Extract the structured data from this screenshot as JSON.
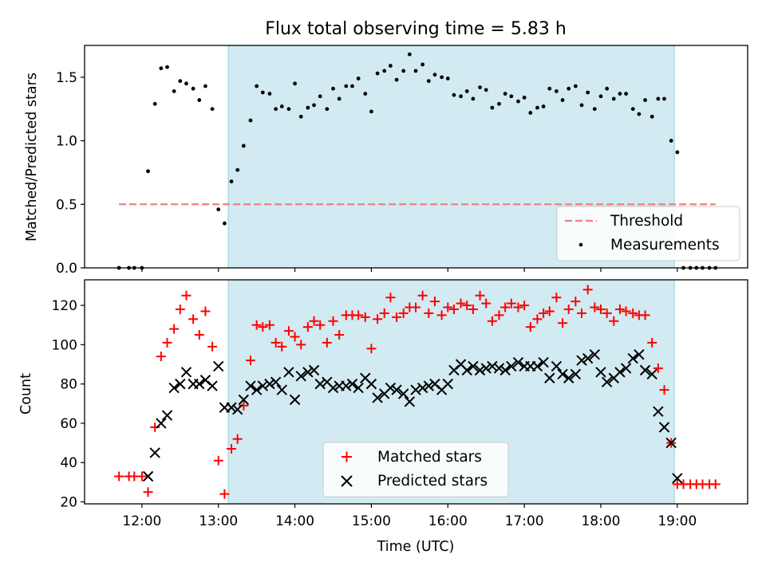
{
  "title": "Flux total observing time = 5.83 h",
  "colors": {
    "shade": "#add8e6",
    "threshold": "#f08080",
    "matched": "#ff0000",
    "predicted": "#000000",
    "measurement": "#000000"
  },
  "chart_data": [
    {
      "type": "scatter",
      "ylabel": "Matched/Predicted stars",
      "ylim": [
        0,
        1.75
      ],
      "yticks": [
        0.0,
        0.5,
        1.0,
        1.5
      ],
      "ytick_labels": [
        "0.0",
        "0.5",
        "1.0",
        "1.5"
      ],
      "xlim": [
        11.25,
        19.92
      ],
      "grid": false,
      "legend_position": "lower-right",
      "observing_window": {
        "start": 13.13,
        "end": 18.96
      },
      "threshold": {
        "name": "Threshold",
        "y": 0.5,
        "x_range": [
          11.7,
          19.5
        ]
      },
      "series": [
        {
          "name": "Measurements",
          "x": [
            11.7,
            11.83,
            11.9,
            12.0,
            12.08,
            12.17,
            12.25,
            12.33,
            12.42,
            12.5,
            12.58,
            12.67,
            12.75,
            12.83,
            12.92,
            13.0,
            13.08,
            13.17,
            13.25,
            13.33,
            13.42,
            13.5,
            13.58,
            13.67,
            13.75,
            13.83,
            13.92,
            14.0,
            14.08,
            14.17,
            14.25,
            14.33,
            14.42,
            14.5,
            14.58,
            14.67,
            14.75,
            14.83,
            14.92,
            15.0,
            15.08,
            15.17,
            15.25,
            15.33,
            15.42,
            15.5,
            15.58,
            15.67,
            15.75,
            15.83,
            15.92,
            16.0,
            16.08,
            16.17,
            16.25,
            16.33,
            16.42,
            16.5,
            16.58,
            16.67,
            16.75,
            16.83,
            16.92,
            17.0,
            17.08,
            17.17,
            17.25,
            17.33,
            17.42,
            17.5,
            17.58,
            17.67,
            17.75,
            17.83,
            17.92,
            18.0,
            18.08,
            18.17,
            18.25,
            18.33,
            18.42,
            18.5,
            18.58,
            18.67,
            18.75,
            18.83,
            18.92,
            19.0,
            19.08,
            19.17,
            19.25,
            19.33,
            19.42,
            19.5
          ],
          "y": [
            0.0,
            0.0,
            0.0,
            0.0,
            0.76,
            1.29,
            1.57,
            1.58,
            1.39,
            1.47,
            1.45,
            1.41,
            1.32,
            1.43,
            1.25,
            0.46,
            0.35,
            0.68,
            0.77,
            0.96,
            1.16,
            1.43,
            1.38,
            1.37,
            1.25,
            1.27,
            1.25,
            1.45,
            1.19,
            1.26,
            1.28,
            1.35,
            1.25,
            1.41,
            1.33,
            1.43,
            1.43,
            1.49,
            1.37,
            1.23,
            1.53,
            1.55,
            1.59,
            1.48,
            1.55,
            1.68,
            1.55,
            1.6,
            1.47,
            1.52,
            1.5,
            1.49,
            1.36,
            1.35,
            1.39,
            1.33,
            1.42,
            1.4,
            1.26,
            1.29,
            1.37,
            1.35,
            1.31,
            1.34,
            1.22,
            1.26,
            1.27,
            1.41,
            1.39,
            1.32,
            1.41,
            1.43,
            1.28,
            1.38,
            1.25,
            1.35,
            1.41,
            1.33,
            1.37,
            1.37,
            1.25,
            1.21,
            1.32,
            1.19,
            1.33,
            1.33,
            1.0,
            0.91,
            0.0,
            0.0,
            0.0,
            0.0,
            0.0,
            0.0
          ]
        }
      ]
    },
    {
      "type": "scatter",
      "ylabel": "Count",
      "xlabel": "Time (UTC)",
      "ylim": [
        19,
        133
      ],
      "yticks": [
        20,
        40,
        60,
        80,
        100,
        120
      ],
      "ytick_labels": [
        "20",
        "40",
        "60",
        "80",
        "100",
        "120"
      ],
      "xlim": [
        11.25,
        19.92
      ],
      "xticks": [
        12,
        13,
        14,
        15,
        16,
        17,
        18,
        19
      ],
      "xtick_labels": [
        "12:00",
        "13:00",
        "14:00",
        "15:00",
        "16:00",
        "17:00",
        "18:00",
        "19:00"
      ],
      "grid": false,
      "legend_position": "lower-center",
      "observing_window": {
        "start": 13.13,
        "end": 18.96
      },
      "series": [
        {
          "name": "Matched stars",
          "marker": "plus",
          "x": [
            11.7,
            11.83,
            11.9,
            12.0,
            12.08,
            12.17,
            12.25,
            12.33,
            12.42,
            12.5,
            12.58,
            12.67,
            12.75,
            12.83,
            12.92,
            13.0,
            13.08,
            13.17,
            13.25,
            13.33,
            13.42,
            13.5,
            13.58,
            13.67,
            13.75,
            13.83,
            13.92,
            14.0,
            14.08,
            14.17,
            14.25,
            14.33,
            14.42,
            14.5,
            14.58,
            14.67,
            14.75,
            14.83,
            14.92,
            15.0,
            15.08,
            15.17,
            15.25,
            15.33,
            15.42,
            15.5,
            15.58,
            15.67,
            15.75,
            15.83,
            15.92,
            16.0,
            16.08,
            16.17,
            16.25,
            16.33,
            16.42,
            16.5,
            16.58,
            16.67,
            16.75,
            16.83,
            16.92,
            17.0,
            17.08,
            17.17,
            17.25,
            17.33,
            17.42,
            17.5,
            17.58,
            17.67,
            17.75,
            17.83,
            17.92,
            18.0,
            18.08,
            18.17,
            18.25,
            18.33,
            18.42,
            18.5,
            18.58,
            18.67,
            18.75,
            18.83,
            18.92,
            19.0,
            19.08,
            19.17,
            19.25,
            19.33,
            19.42,
            19.5
          ],
          "y": [
            33,
            33,
            33,
            33,
            25,
            58,
            94,
            101,
            108,
            118,
            125,
            113,
            105,
            117,
            99,
            41,
            24,
            47,
            52,
            69,
            92,
            110,
            109,
            110,
            101,
            99,
            107,
            104,
            100,
            109,
            112,
            110,
            101,
            112,
            105,
            115,
            115,
            115,
            114,
            98,
            113,
            116,
            124,
            114,
            116,
            119,
            119,
            125,
            116,
            122,
            115,
            119,
            118,
            121,
            120,
            118,
            125,
            121,
            112,
            115,
            119,
            121,
            119,
            120,
            109,
            113,
            116,
            117,
            124,
            111,
            118,
            122,
            116,
            128,
            119,
            118,
            116,
            112,
            118,
            117,
            116,
            115,
            115,
            101,
            88,
            77,
            50,
            29,
            29,
            29,
            29,
            29,
            29,
            29
          ]
        },
        {
          "name": "Predicted stars",
          "marker": "x",
          "x": [
            12.08,
            12.17,
            12.25,
            12.33,
            12.42,
            12.5,
            12.58,
            12.67,
            12.75,
            12.83,
            12.92,
            13.0,
            13.08,
            13.17,
            13.25,
            13.33,
            13.42,
            13.5,
            13.58,
            13.67,
            13.75,
            13.83,
            13.92,
            14.0,
            14.08,
            14.17,
            14.25,
            14.33,
            14.42,
            14.5,
            14.58,
            14.67,
            14.75,
            14.83,
            14.92,
            15.0,
            15.08,
            15.17,
            15.25,
            15.33,
            15.42,
            15.5,
            15.58,
            15.67,
            15.75,
            15.83,
            15.92,
            16.0,
            16.08,
            16.17,
            16.25,
            16.33,
            16.42,
            16.5,
            16.58,
            16.67,
            16.75,
            16.83,
            16.92,
            17.0,
            17.08,
            17.17,
            17.25,
            17.33,
            17.42,
            17.5,
            17.58,
            17.67,
            17.75,
            17.83,
            17.92,
            18.0,
            18.08,
            18.17,
            18.25,
            18.33,
            18.42,
            18.5,
            18.58,
            18.67,
            18.75,
            18.83,
            18.92,
            19.0
          ],
          "y": [
            33,
            45,
            60,
            64,
            78,
            80,
            86,
            80,
            80,
            82,
            79,
            89,
            68,
            68,
            67,
            72,
            79,
            77,
            79,
            80,
            81,
            77,
            86,
            72,
            84,
            86,
            87,
            80,
            81,
            78,
            79,
            79,
            80,
            78,
            83,
            80,
            73,
            75,
            78,
            77,
            75,
            71,
            77,
            78,
            79,
            80,
            77,
            80,
            87,
            90,
            87,
            89,
            87,
            88,
            89,
            88,
            87,
            89,
            91,
            89,
            89,
            89,
            91,
            83,
            89,
            85,
            83,
            85,
            92,
            93,
            95,
            86,
            81,
            83,
            86,
            88,
            93,
            95,
            87,
            85,
            66,
            58,
            50,
            32
          ]
        }
      ]
    }
  ]
}
